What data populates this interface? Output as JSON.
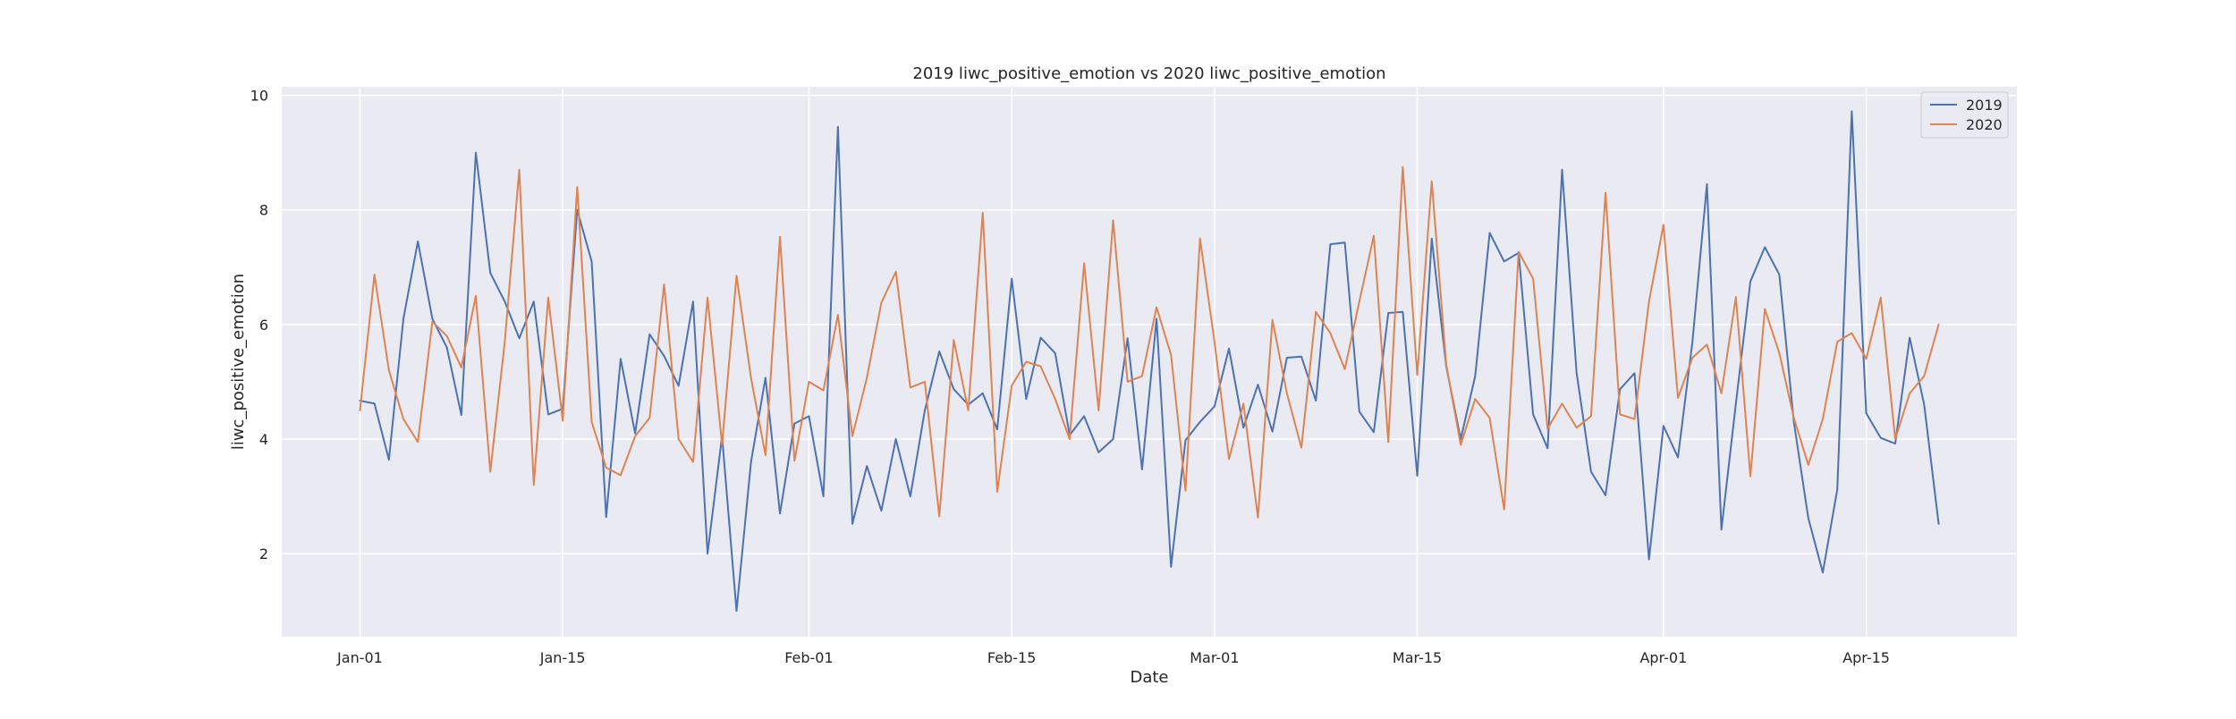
{
  "chart_data": {
    "type": "line",
    "title": "2019 liwc_positive_emotion vs 2020 liwc_positive_emotion",
    "xlabel": "Date",
    "ylabel": "liwc_positive_emotion",
    "x_start": "Jan-01",
    "x_ticks": [
      "Jan-01",
      "Jan-15",
      "Feb-01",
      "Feb-15",
      "Mar-01",
      "Mar-15",
      "Apr-01",
      "Apr-15"
    ],
    "x_tick_days": [
      0,
      14,
      31,
      45,
      59,
      73,
      90,
      104
    ],
    "x_range_days": [
      -5.4,
      114.4
    ],
    "y_ticks": [
      2,
      4,
      6,
      8,
      10
    ],
    "ylim": [
      0.55,
      10.15
    ],
    "grid": true,
    "legend_position": "top-right",
    "series": [
      {
        "name": "2019",
        "color": "#4c72b0",
        "values": [
          4.67,
          4.62,
          3.64,
          6.1,
          7.45,
          6.1,
          5.6,
          4.42,
          9.0,
          6.9,
          6.4,
          5.76,
          6.4,
          4.43,
          4.53,
          8.0,
          7.1,
          2.64,
          5.4,
          4.1,
          5.83,
          5.45,
          4.93,
          6.4,
          2.0,
          4.05,
          1.0,
          3.6,
          5.07,
          2.7,
          4.27,
          4.4,
          3.0,
          9.45,
          2.52,
          3.53,
          2.75,
          4.0,
          3.0,
          4.5,
          5.53,
          4.87,
          4.6,
          4.8,
          4.17,
          6.8,
          4.7,
          5.77,
          5.5,
          4.07,
          4.4,
          3.77,
          4.0,
          5.76,
          3.47,
          6.1,
          1.77,
          3.98,
          4.3,
          4.57,
          5.58,
          4.2,
          4.95,
          4.13,
          5.42,
          5.44,
          4.67,
          7.4,
          7.43,
          4.48,
          4.12,
          6.2,
          6.22,
          3.36,
          7.5,
          5.27,
          4.0,
          5.1,
          7.6,
          7.1,
          7.25,
          4.43,
          3.84,
          8.7,
          5.16,
          3.43,
          3.02,
          4.87,
          5.15,
          1.9,
          4.23,
          3.68,
          5.7,
          8.45,
          2.42,
          4.62,
          6.75,
          7.35,
          6.87,
          4.3,
          2.62,
          1.67,
          3.12,
          9.72,
          4.45,
          4.02,
          3.92,
          5.77,
          4.6,
          2.52
        ],
        "values_note": ""
      },
      {
        "name": "2020",
        "color": "#dd8452",
        "values": [
          4.5,
          6.87,
          5.2,
          4.35,
          3.95,
          6.05,
          5.8,
          5.25,
          6.5,
          3.43,
          5.7,
          8.7,
          3.2,
          6.47,
          4.32,
          8.4,
          4.3,
          3.5,
          3.37,
          4.05,
          4.37,
          6.7,
          4.0,
          3.6,
          6.47,
          3.9,
          6.85,
          5.07,
          3.72,
          7.53,
          3.62,
          5.0,
          4.85,
          6.17,
          4.05,
          5.07,
          6.38,
          6.92,
          4.9,
          5.0,
          2.65,
          5.73,
          4.5,
          7.95,
          3.08,
          4.93,
          5.35,
          5.27,
          4.7,
          4.0,
          7.07,
          4.5,
          7.82,
          5.0,
          5.1,
          6.3,
          5.47,
          3.1,
          7.5,
          5.7,
          3.65,
          4.62,
          2.63,
          6.08,
          4.8,
          3.85,
          6.22,
          5.85,
          5.22,
          6.4,
          7.55,
          3.95,
          8.75,
          5.12,
          8.5,
          5.3,
          3.9,
          4.7,
          4.37,
          2.77,
          7.27,
          6.8,
          4.18,
          4.62,
          4.2,
          4.4,
          8.3,
          4.43,
          4.35,
          6.4,
          7.74,
          4.72,
          5.42,
          5.65,
          4.8,
          6.48,
          3.35,
          6.27,
          5.5,
          4.37,
          3.55,
          4.35,
          5.7,
          5.85,
          5.4,
          6.47,
          4.0,
          4.8,
          5.1,
          6.0
        ]
      }
    ]
  }
}
